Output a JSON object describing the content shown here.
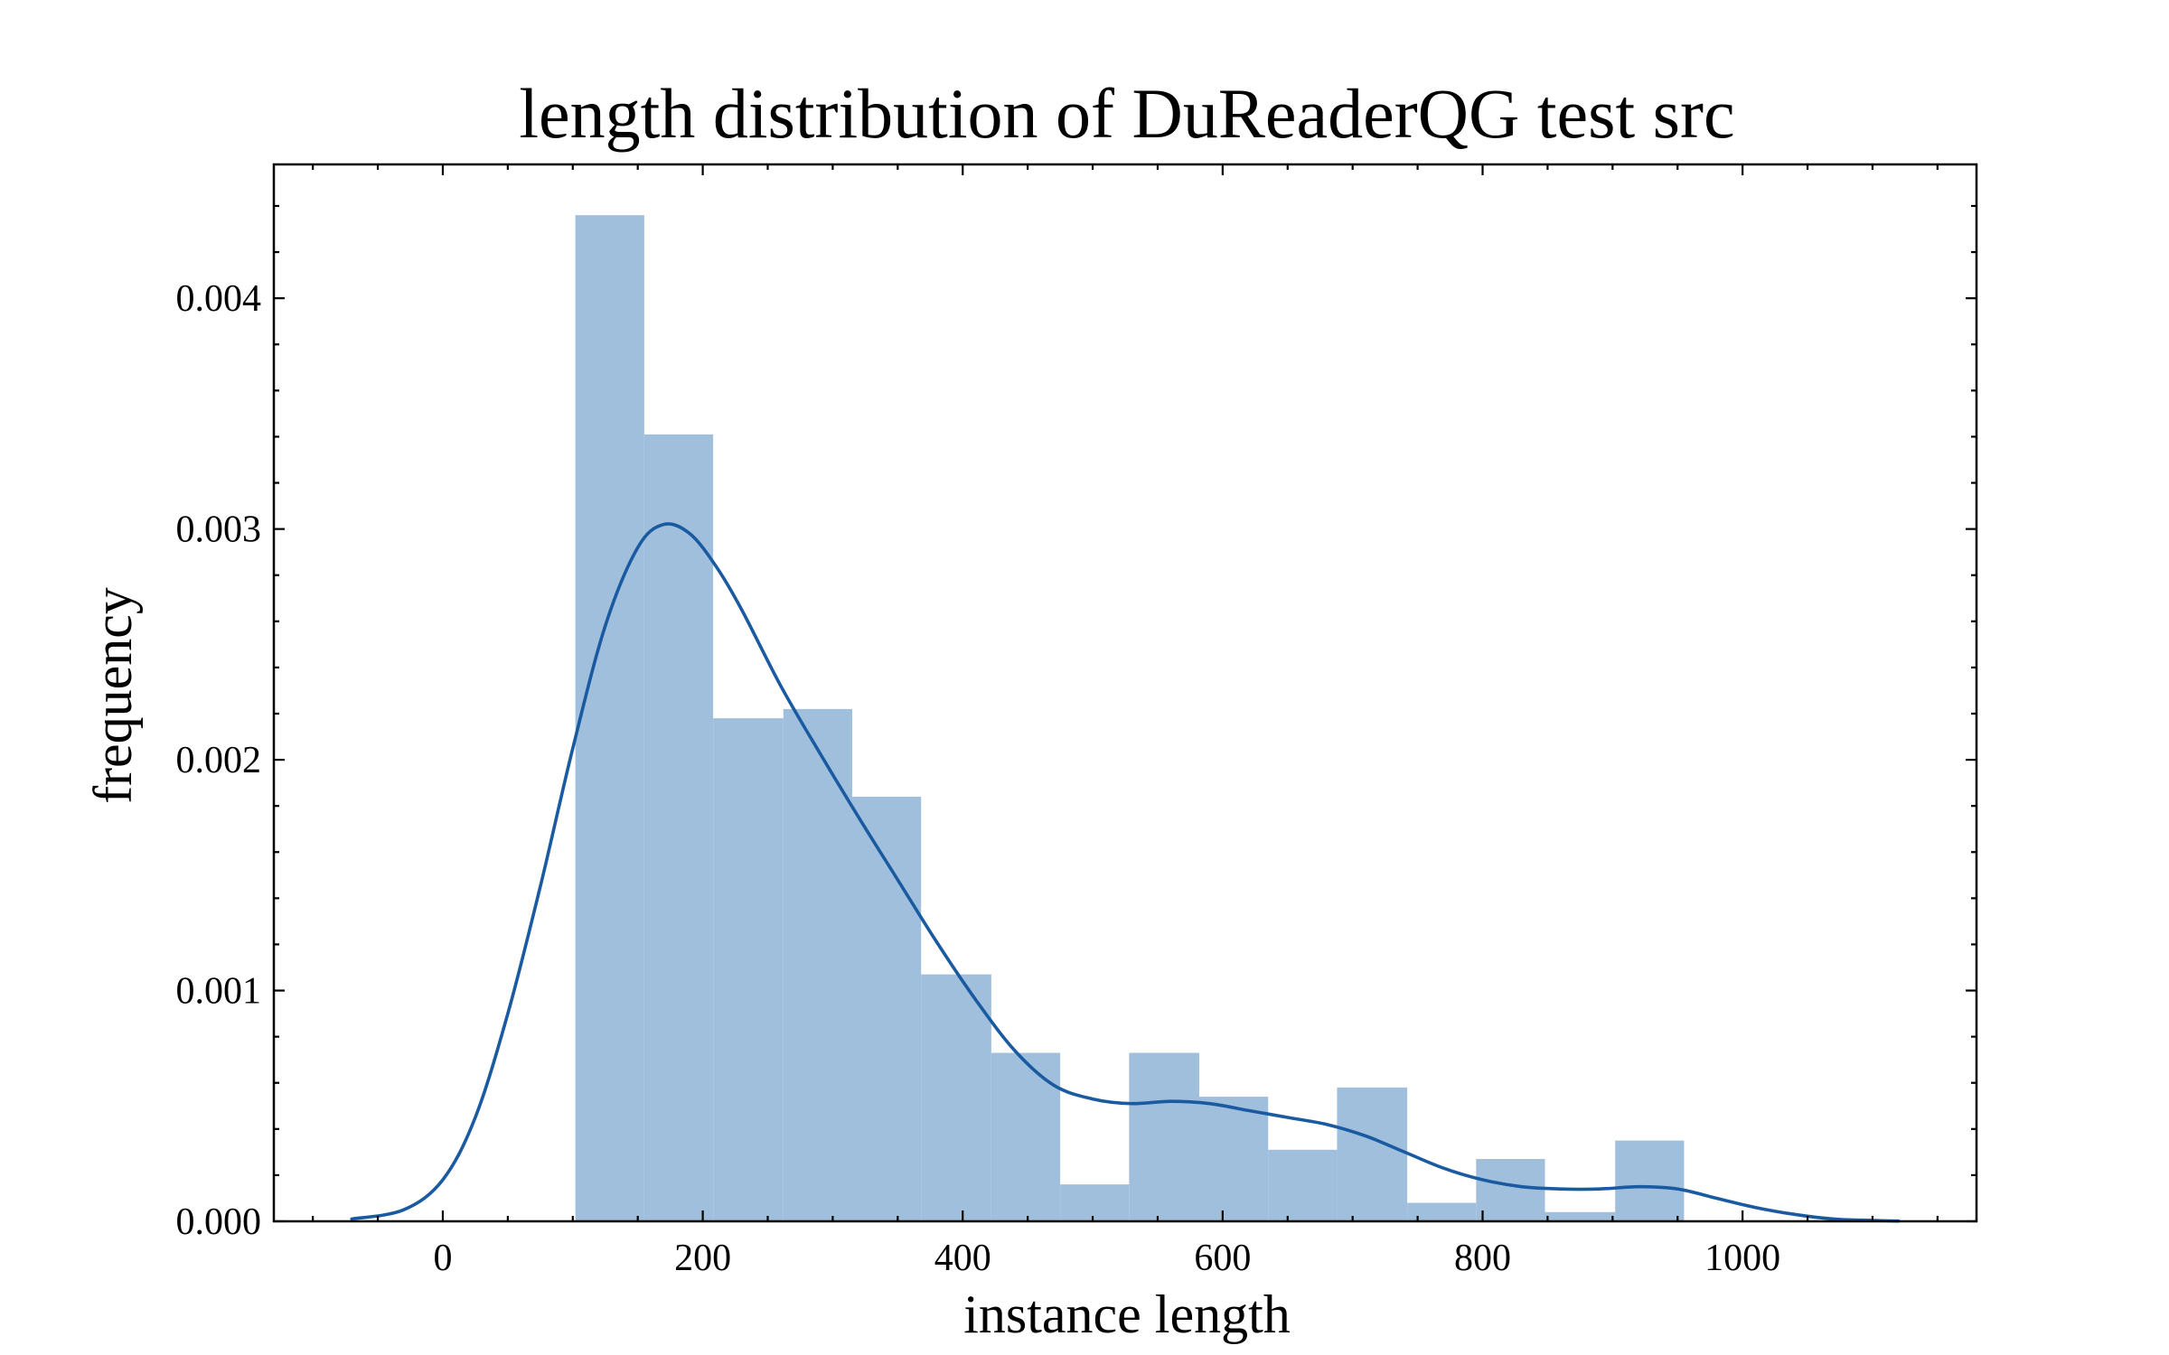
{
  "chart_data": {
    "type": "histogram",
    "title": "length distribution of DuReaderQG test src",
    "xlabel": "instance length",
    "ylabel": "frequency",
    "xlim": [
      -130,
      1180
    ],
    "ylim": [
      0,
      0.00458
    ],
    "x_ticks": [
      0,
      200,
      400,
      600,
      800,
      1000
    ],
    "x_tick_labels": [
      "0",
      "200",
      "400",
      "600",
      "800",
      "1000"
    ],
    "y_ticks": [
      0,
      0.001,
      0.002,
      0.003,
      0.004
    ],
    "y_tick_labels": [
      "0.000",
      "0.001",
      "0.002",
      "0.003",
      "0.004"
    ],
    "grid": false,
    "bins": [
      {
        "x0": 102,
        "x1": 155,
        "density": 0.00436
      },
      {
        "x0": 155,
        "x1": 208,
        "density": 0.00341
      },
      {
        "x0": 208,
        "x1": 262,
        "density": 0.00218
      },
      {
        "x0": 262,
        "x1": 315,
        "density": 0.00222
      },
      {
        "x0": 315,
        "x1": 368,
        "density": 0.00184
      },
      {
        "x0": 368,
        "x1": 422,
        "density": 0.00107
      },
      {
        "x0": 422,
        "x1": 475,
        "density": 0.00073
      },
      {
        "x0": 475,
        "x1": 528,
        "density": 0.00016
      },
      {
        "x0": 528,
        "x1": 582,
        "density": 0.00073
      },
      {
        "x0": 582,
        "x1": 635,
        "density": 0.00054
      },
      {
        "x0": 635,
        "x1": 688,
        "density": 0.00031
      },
      {
        "x0": 688,
        "x1": 742,
        "density": 0.00058
      },
      {
        "x0": 742,
        "x1": 795,
        "density": 8e-05
      },
      {
        "x0": 795,
        "x1": 848,
        "density": 0.00027
      },
      {
        "x0": 848,
        "x1": 902,
        "density": 4e-05
      },
      {
        "x0": 902,
        "x1": 955,
        "density": 0.00035
      }
    ],
    "kde": {
      "x": [
        -70,
        -30,
        0,
        25,
        50,
        75,
        100,
        125,
        150,
        170,
        190,
        210,
        230,
        260,
        290,
        320,
        350,
        380,
        410,
        440,
        470,
        500,
        530,
        560,
        590,
        620,
        650,
        680,
        710,
        740,
        770,
        800,
        830,
        860,
        890,
        920,
        950,
        980,
        1010,
        1040,
        1070,
        1100,
        1120
      ],
      "y": [
        1e-05,
        5e-05,
        0.00018,
        0.00045,
        0.0009,
        0.00145,
        0.00205,
        0.00258,
        0.00292,
        0.00302,
        0.00298,
        0.00284,
        0.00265,
        0.00232,
        0.00203,
        0.00175,
        0.00148,
        0.00121,
        0.00096,
        0.00074,
        0.00059,
        0.00053,
        0.00051,
        0.00052,
        0.00051,
        0.00048,
        0.00045,
        0.00042,
        0.00037,
        0.0003,
        0.00023,
        0.00018,
        0.00015,
        0.00014,
        0.00014,
        0.00015,
        0.00014,
        0.0001,
        6e-05,
        3e-05,
        1e-05,
        4e-06,
        1e-06
      ]
    },
    "colors": {
      "bars": "#a0bfdc",
      "kde_line": "#1a5aa0"
    }
  }
}
